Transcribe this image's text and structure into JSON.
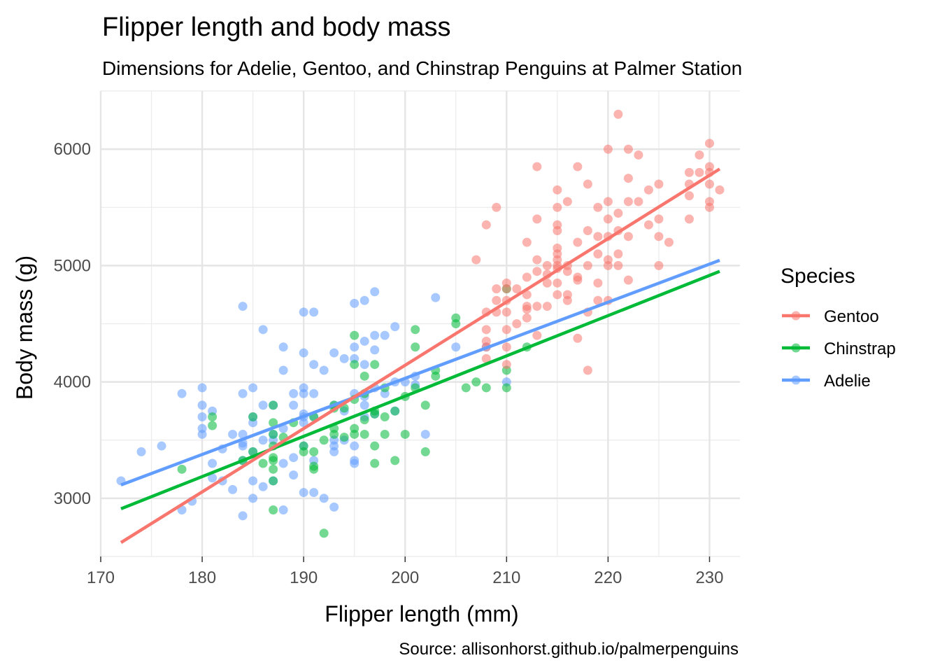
{
  "chart_data": {
    "type": "scatter",
    "title": "Flipper length and body mass",
    "subtitle": "Dimensions for Adelie, Gentoo, and Chinstrap Penguins at Palmer Station",
    "xlabel": "Flipper length (mm)",
    "ylabel": "Body mass (g)",
    "caption": "Source: allisonhorst.github.io/palmerpenguins",
    "xlim": [
      170,
      233
    ],
    "ylim": [
      2500,
      6500
    ],
    "xticks": [
      170,
      180,
      190,
      200,
      210,
      220,
      230
    ],
    "yticks": [
      3000,
      4000,
      5000,
      6000
    ],
    "grid": true,
    "legend": {
      "title": "Species",
      "position": "right",
      "items": [
        "Gentoo",
        "Chinstrap",
        "Adelie"
      ]
    },
    "series": [
      {
        "name": "Gentoo",
        "color": "#F8766D",
        "trend": {
          "x": [
            172,
            231
          ],
          "y": [
            2620,
            5830
          ]
        },
        "points": [
          [
            207,
            5050
          ],
          [
            208,
            4450
          ],
          [
            208,
            4350
          ],
          [
            208,
            4300
          ],
          [
            208,
            4200
          ],
          [
            208,
            4600
          ],
          [
            208,
            5350
          ],
          [
            209,
            5500
          ],
          [
            209,
            4800
          ],
          [
            209,
            4700
          ],
          [
            209,
            4600
          ],
          [
            210,
            4850
          ],
          [
            210,
            4800
          ],
          [
            210,
            4700
          ],
          [
            210,
            4600
          ],
          [
            210,
            4450
          ],
          [
            210,
            4300
          ],
          [
            210,
            4150
          ],
          [
            211,
            4800
          ],
          [
            211,
            4500
          ],
          [
            212,
            5200
          ],
          [
            212,
            4900
          ],
          [
            212,
            4750
          ],
          [
            212,
            4625
          ],
          [
            212,
            4550
          ],
          [
            212,
            4650
          ],
          [
            213,
            5850
          ],
          [
            213,
            5400
          ],
          [
            213,
            5050
          ],
          [
            213,
            4950
          ],
          [
            213,
            4650
          ],
          [
            213,
            4400
          ],
          [
            214,
            5000
          ],
          [
            214,
            4925
          ],
          [
            214,
            4650
          ],
          [
            214,
            4850
          ],
          [
            215,
            5650
          ],
          [
            215,
            5500
          ],
          [
            215,
            5350
          ],
          [
            215,
            5300
          ],
          [
            215,
            5150
          ],
          [
            215,
            5050
          ],
          [
            215,
            5000
          ],
          [
            215,
            4975
          ],
          [
            215,
            4850
          ],
          [
            215,
            4750
          ],
          [
            215,
            5100
          ],
          [
            216,
            5550
          ],
          [
            216,
            5000
          ],
          [
            216,
            4950
          ],
          [
            216,
            4750
          ],
          [
            216,
            4700
          ],
          [
            217,
            5850
          ],
          [
            217,
            5200
          ],
          [
            217,
            4900
          ],
          [
            217,
            4875
          ],
          [
            217,
            4375
          ],
          [
            218,
            5700
          ],
          [
            218,
            5300
          ],
          [
            218,
            5000
          ],
          [
            218,
            4600
          ],
          [
            218,
            4100
          ],
          [
            219,
            5500
          ],
          [
            219,
            5250
          ],
          [
            219,
            5100
          ],
          [
            219,
            4850
          ],
          [
            219,
            4700
          ],
          [
            220,
            6000
          ],
          [
            220,
            5550
          ],
          [
            220,
            5400
          ],
          [
            220,
            5250
          ],
          [
            220,
            5050
          ],
          [
            220,
            5000
          ],
          [
            220,
            4700
          ],
          [
            221,
            6300
          ],
          [
            221,
            5450
          ],
          [
            221,
            5300
          ],
          [
            221,
            5100
          ],
          [
            221,
            5000
          ],
          [
            222,
            6000
          ],
          [
            222,
            5750
          ],
          [
            222,
            5550
          ],
          [
            222,
            5250
          ],
          [
            222,
            4875
          ],
          [
            223,
            5950
          ],
          [
            223,
            5550
          ],
          [
            224,
            5650
          ],
          [
            224,
            5350
          ],
          [
            225,
            5700
          ],
          [
            225,
            5400
          ],
          [
            225,
            5250
          ],
          [
            225,
            5000
          ],
          [
            226,
            5200
          ],
          [
            228,
            5800
          ],
          [
            228,
            5700
          ],
          [
            228,
            5600
          ],
          [
            228,
            5400
          ],
          [
            229,
            5950
          ],
          [
            229,
            5800
          ],
          [
            230,
            6050
          ],
          [
            230,
            5850
          ],
          [
            230,
            5800
          ],
          [
            230,
            5700
          ],
          [
            230,
            5550
          ],
          [
            230,
            5500
          ],
          [
            231,
            5650
          ]
        ]
      },
      {
        "name": "Chinstrap",
        "color": "#00BA38",
        "trend": {
          "x": [
            172,
            231
          ],
          "y": [
            2910,
            4950
          ]
        },
        "points": [
          [
            178,
            3250
          ],
          [
            181,
            3700
          ],
          [
            181,
            3625
          ],
          [
            184,
            3325
          ],
          [
            185,
            3700
          ],
          [
            185,
            3400
          ],
          [
            186,
            3300
          ],
          [
            187,
            3800
          ],
          [
            187,
            3650
          ],
          [
            187,
            3550
          ],
          [
            187,
            3450
          ],
          [
            187,
            3350
          ],
          [
            187,
            3325
          ],
          [
            187,
            3250
          ],
          [
            187,
            3150
          ],
          [
            187,
            2900
          ],
          [
            188,
            3525
          ],
          [
            189,
            3650
          ],
          [
            190,
            3450
          ],
          [
            190,
            3400
          ],
          [
            191,
            3700
          ],
          [
            191,
            3400
          ],
          [
            191,
            3275
          ],
          [
            191,
            3250
          ],
          [
            192,
            3500
          ],
          [
            192,
            2700
          ],
          [
            193,
            3800
          ],
          [
            193,
            3775
          ],
          [
            193,
            3600
          ],
          [
            193,
            3550
          ],
          [
            194,
            3775
          ],
          [
            194,
            3525
          ],
          [
            195,
            4400
          ],
          [
            195,
            4150
          ],
          [
            195,
            3850
          ],
          [
            195,
            3600
          ],
          [
            195,
            3550
          ],
          [
            196,
            4050
          ],
          [
            196,
            3900
          ],
          [
            196,
            3675
          ],
          [
            196,
            3550
          ],
          [
            197,
            4150
          ],
          [
            197,
            3750
          ],
          [
            197,
            3725
          ],
          [
            197,
            3450
          ],
          [
            197,
            3300
          ],
          [
            198,
            3950
          ],
          [
            198,
            3700
          ],
          [
            198,
            3550
          ],
          [
            199,
            3750
          ],
          [
            199,
            3325
          ],
          [
            200,
            3875
          ],
          [
            200,
            3550
          ],
          [
            201,
            4450
          ],
          [
            201,
            4300
          ],
          [
            201,
            3950
          ],
          [
            202,
            3800
          ],
          [
            202,
            3400
          ],
          [
            203,
            4100
          ],
          [
            203,
            4050
          ],
          [
            205,
            4550
          ],
          [
            205,
            4500
          ],
          [
            206,
            3950
          ],
          [
            207,
            4000
          ],
          [
            208,
            3950
          ],
          [
            210,
            4800
          ],
          [
            210,
            4100
          ],
          [
            210,
            3950
          ],
          [
            212,
            4300
          ]
        ]
      },
      {
        "name": "Adelie",
        "color": "#619CFF",
        "trend": {
          "x": [
            172,
            231
          ],
          "y": [
            3115,
            5045
          ]
        },
        "points": [
          [
            172,
            3150
          ],
          [
            174,
            3400
          ],
          [
            176,
            3450
          ],
          [
            178,
            3900
          ],
          [
            178,
            2900
          ],
          [
            179,
            2975
          ],
          [
            180,
            3950
          ],
          [
            180,
            3800
          ],
          [
            180,
            3700
          ],
          [
            180,
            3600
          ],
          [
            180,
            3550
          ],
          [
            181,
            3750
          ],
          [
            181,
            3300
          ],
          [
            181,
            3175
          ],
          [
            182,
            3425
          ],
          [
            182,
            3150
          ],
          [
            183,
            3550
          ],
          [
            183,
            3075
          ],
          [
            184,
            4650
          ],
          [
            184,
            3900
          ],
          [
            184,
            3550
          ],
          [
            184,
            3475
          ],
          [
            184,
            3450
          ],
          [
            184,
            3325
          ],
          [
            184,
            2850
          ],
          [
            185,
            3950
          ],
          [
            185,
            3700
          ],
          [
            185,
            3650
          ],
          [
            185,
            3400
          ],
          [
            185,
            3150
          ],
          [
            185,
            3000
          ],
          [
            186,
            4450
          ],
          [
            186,
            3800
          ],
          [
            186,
            3500
          ],
          [
            186,
            3100
          ],
          [
            187,
            3800
          ],
          [
            187,
            3550
          ],
          [
            187,
            3500
          ],
          [
            187,
            3150
          ],
          [
            188,
            4300
          ],
          [
            188,
            4100
          ],
          [
            188,
            3600
          ],
          [
            188,
            3300
          ],
          [
            188,
            2900
          ],
          [
            189,
            3900
          ],
          [
            189,
            3800
          ],
          [
            189,
            3350
          ],
          [
            189,
            3200
          ],
          [
            190,
            4600
          ],
          [
            190,
            4250
          ],
          [
            190,
            3950
          ],
          [
            190,
            3900
          ],
          [
            190,
            3725
          ],
          [
            190,
            3700
          ],
          [
            190,
            3650
          ],
          [
            190,
            3450
          ],
          [
            190,
            3050
          ],
          [
            191,
            4600
          ],
          [
            191,
            4150
          ],
          [
            191,
            3900
          ],
          [
            191,
            3700
          ],
          [
            191,
            3325
          ],
          [
            191,
            3050
          ],
          [
            192,
            4100
          ],
          [
            192,
            3000
          ],
          [
            193,
            4250
          ],
          [
            193,
            3800
          ],
          [
            193,
            3500
          ],
          [
            193,
            3450
          ],
          [
            193,
            3400
          ],
          [
            193,
            2925
          ],
          [
            194,
            4200
          ],
          [
            194,
            3750
          ],
          [
            194,
            3500
          ],
          [
            195,
            4675
          ],
          [
            195,
            4300
          ],
          [
            195,
            4200
          ],
          [
            195,
            3900
          ],
          [
            195,
            3450
          ],
          [
            195,
            3325
          ],
          [
            195,
            3300
          ],
          [
            196,
            4700
          ],
          [
            196,
            4350
          ],
          [
            196,
            4150
          ],
          [
            196,
            3875
          ],
          [
            196,
            3800
          ],
          [
            196,
            3700
          ],
          [
            197,
            4775
          ],
          [
            197,
            4400
          ],
          [
            197,
            4275
          ],
          [
            197,
            3950
          ],
          [
            197,
            3725
          ],
          [
            198,
            4400
          ],
          [
            198,
            3900
          ],
          [
            199,
            4475
          ],
          [
            199,
            4000
          ],
          [
            199,
            3750
          ],
          [
            200,
            4000
          ],
          [
            201,
            4050
          ],
          [
            201,
            3975
          ],
          [
            202,
            3550
          ],
          [
            203,
            4725
          ],
          [
            205,
            4300
          ],
          [
            208,
            4300
          ],
          [
            210,
            4000
          ]
        ]
      }
    ]
  }
}
